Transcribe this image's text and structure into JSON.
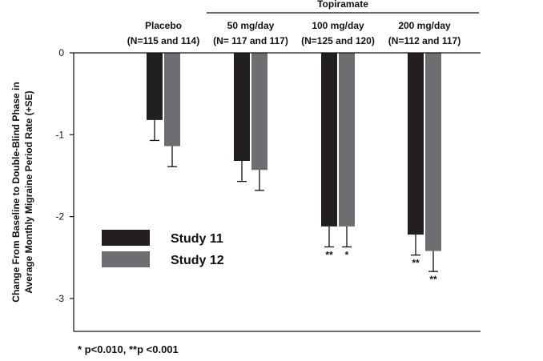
{
  "chart_data": {
    "type": "bar",
    "header_group_label": "Topiramate",
    "categories": [
      {
        "name": "Placebo",
        "n": "(N=115 and 114)"
      },
      {
        "name": "50 mg/day",
        "n": "(N= 117 and 117)"
      },
      {
        "name": "100 mg/day",
        "n": "(N=125 and 120)"
      },
      {
        "name": "200 mg/day",
        "n": "(N=112 and 117)"
      }
    ],
    "series": [
      {
        "name": "Study 11",
        "color": "#231f20",
        "values": [
          -0.82,
          -1.32,
          -2.12,
          -2.22
        ],
        "errors": [
          0.25,
          0.25,
          0.25,
          0.25
        ],
        "significance": [
          "",
          "",
          "**",
          "**"
        ]
      },
      {
        "name": "Study 12",
        "color": "#6d6e71",
        "values": [
          -1.14,
          -1.43,
          -2.12,
          -2.42
        ],
        "errors": [
          0.25,
          0.25,
          0.25,
          0.25
        ],
        "significance": [
          "",
          "",
          "*",
          "**"
        ]
      }
    ],
    "ylabel_line1": "Change From Baseline to Double-Blind Phase in",
    "ylabel_line2": "Average Monthly Migraine Period Rate (+SE)",
    "yticks": [
      "0",
      "-1",
      "-2",
      "-3"
    ],
    "ylim": [
      -3.4,
      0
    ],
    "footnote": "* p<0.010, **p <0.001"
  }
}
